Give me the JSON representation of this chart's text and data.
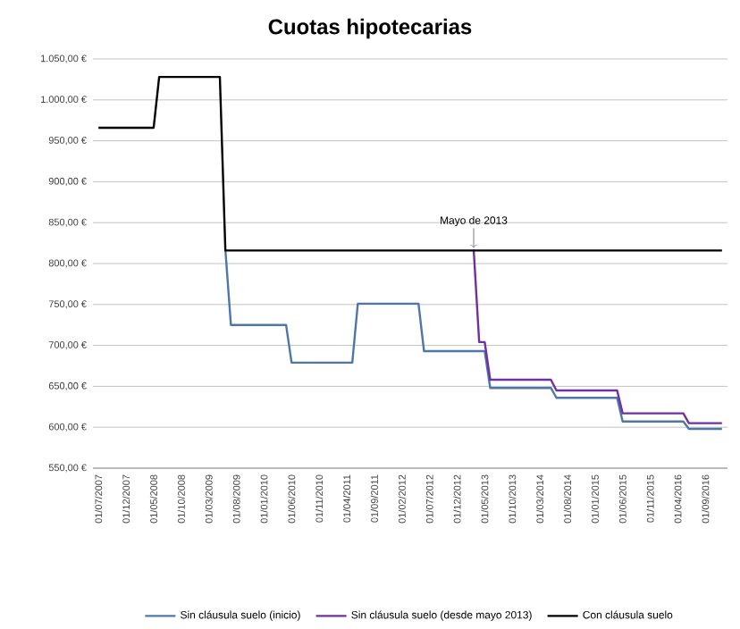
{
  "chart_data": {
    "type": "line",
    "title": "Cuotas hipotecarias",
    "xlim": [
      "2007-06",
      "2017-01"
    ],
    "xticks": [
      {
        "value": "2007-07",
        "label": "01/07/2007"
      },
      {
        "value": "2007-12",
        "label": "01/12/2007"
      },
      {
        "value": "2008-05",
        "label": "01/05/2008"
      },
      {
        "value": "2008-10",
        "label": "01/10/2008"
      },
      {
        "value": "2009-03",
        "label": "01/03/2009"
      },
      {
        "value": "2009-08",
        "label": "01/08/2009"
      },
      {
        "value": "2010-01",
        "label": "01/01/2010"
      },
      {
        "value": "2010-06",
        "label": "01/06/2010"
      },
      {
        "value": "2010-11",
        "label": "01/11/2010"
      },
      {
        "value": "2011-04",
        "label": "01/04/2011"
      },
      {
        "value": "2011-09",
        "label": "01/09/2011"
      },
      {
        "value": "2012-02",
        "label": "01/02/2012"
      },
      {
        "value": "2012-07",
        "label": "01/07/2012"
      },
      {
        "value": "2012-12",
        "label": "01/12/2012"
      },
      {
        "value": "2013-05",
        "label": "01/05/2013"
      },
      {
        "value": "2013-10",
        "label": "01/10/2013"
      },
      {
        "value": "2014-03",
        "label": "01/03/2014"
      },
      {
        "value": "2014-08",
        "label": "01/08/2014"
      },
      {
        "value": "2015-01",
        "label": "01/01/2015"
      },
      {
        "value": "2015-06",
        "label": "01/06/2015"
      },
      {
        "value": "2015-11",
        "label": "01/11/2015"
      },
      {
        "value": "2016-04",
        "label": "01/04/2016"
      },
      {
        "value": "2016-09",
        "label": "01/09/2016"
      }
    ],
    "ylim": [
      550,
      1050
    ],
    "yticks": [
      {
        "value": 550,
        "label": "550,00 €"
      },
      {
        "value": 600,
        "label": "600,00 €"
      },
      {
        "value": 650,
        "label": "650,00 €"
      },
      {
        "value": 700,
        "label": "700,00 €"
      },
      {
        "value": 750,
        "label": "750,00 €"
      },
      {
        "value": 800,
        "label": "800,00 €"
      },
      {
        "value": 850,
        "label": "850,00 €"
      },
      {
        "value": 900,
        "label": "900,00 €"
      },
      {
        "value": 950,
        "label": "950,00 €"
      },
      {
        "value": 1000,
        "label": "1.000,00 €"
      },
      {
        "value": 1050,
        "label": "1.050,00 €"
      }
    ],
    "grid": "y",
    "legend": "bottom",
    "marker": "none",
    "line_style": "solid",
    "annotations": [
      {
        "text": "Mayo de 2013",
        "x": "2013-03",
        "y": 817
      }
    ],
    "series": [
      {
        "name": "Sin cláusula suelo (inicio)",
        "color": "#4f76a8",
        "x": [
          "2009-06",
          "2009-07",
          "2010-05",
          "2010-06",
          "2011-05",
          "2011-06",
          "2012-05",
          "2012-06",
          "2013-05",
          "2013-06",
          "2014-05",
          "2014-06",
          "2015-05",
          "2015-06",
          "2016-05",
          "2016-06",
          "2016-12"
        ],
        "values": [
          817,
          725,
          725,
          679,
          679,
          751,
          751,
          693,
          693,
          648,
          648,
          636,
          636,
          607,
          607,
          598,
          598
        ]
      },
      {
        "name": "Sin cláusula suelo (desde mayo 2013)",
        "color": "#7030a0",
        "x": [
          "2013-03",
          "2013-04",
          "2013-05",
          "2013-06",
          "2014-05",
          "2014-06",
          "2015-05",
          "2015-06",
          "2016-05",
          "2016-06",
          "2016-12"
        ],
        "values": [
          817,
          704,
          704,
          658,
          658,
          645,
          645,
          617,
          617,
          605,
          605
        ]
      },
      {
        "name": "Con cláusula suelo",
        "color": "#000000",
        "x": [
          "2007-07",
          "2008-05",
          "2008-06",
          "2009-05",
          "2009-06",
          "2016-12"
        ],
        "values": [
          966,
          966,
          1028,
          1028,
          816,
          816
        ]
      }
    ]
  }
}
